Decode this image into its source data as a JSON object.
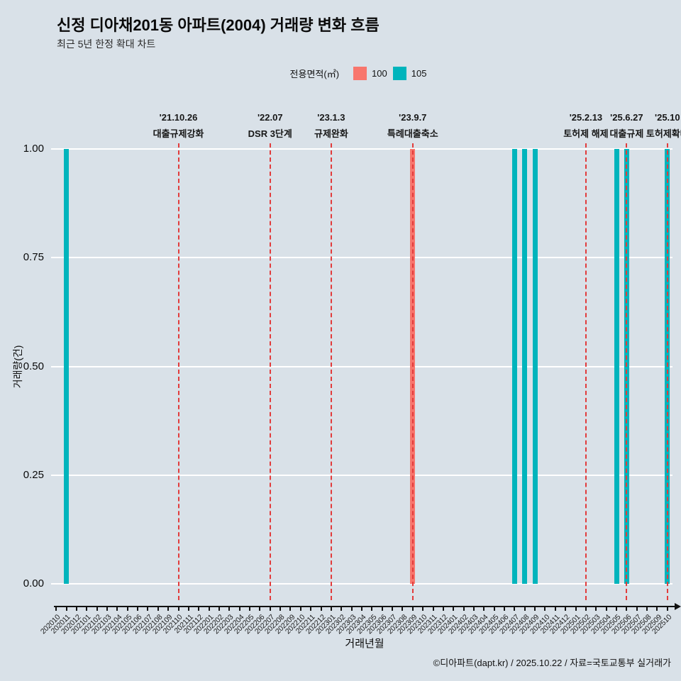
{
  "page": {
    "title": "신정 디아채201동 아파트(2004) 거래량 변화 흐름",
    "subtitle": "최근 5년 한정 확대 차트",
    "footer": "©디아파트(dapt.kr) / 2025.10.22 / 자료=국토교통부 실거래가"
  },
  "legend": {
    "title": "전용면적(㎡)",
    "items": [
      {
        "label": "100",
        "color": "#F8766D"
      },
      {
        "label": "105",
        "color": "#00B4BC"
      }
    ]
  },
  "colors": {
    "background": "#d9e1e8",
    "grid": "#ffffff",
    "axis": "#111111",
    "event_line": "#e23b3b"
  },
  "chart_data": {
    "type": "bar",
    "title": "신정 디아채201동 아파트(2004) 거래량 변화 흐름",
    "subtitle": "최근 5년 한정 확대 차트",
    "xlabel": "거래년월",
    "ylabel": "거래량(건)",
    "ylim": [
      0,
      1
    ],
    "yticks": [
      0,
      0.25,
      0.5,
      0.75,
      1
    ],
    "ytick_labels": [
      "0.00",
      "0.25",
      "0.50",
      "0.75",
      "1.00"
    ],
    "grid": true,
    "legend_position": "top",
    "legend_title": "전용면적(㎡)",
    "categories": [
      "202010",
      "202011",
      "202012",
      "202101",
      "202102",
      "202103",
      "202104",
      "202105",
      "202106",
      "202107",
      "202108",
      "202109",
      "202110",
      "202111",
      "202112",
      "202201",
      "202202",
      "202203",
      "202204",
      "202205",
      "202206",
      "202207",
      "202208",
      "202209",
      "202210",
      "202211",
      "202212",
      "202301",
      "202302",
      "202303",
      "202304",
      "202305",
      "202306",
      "202307",
      "202308",
      "202309",
      "202310",
      "202311",
      "202312",
      "202401",
      "202402",
      "202403",
      "202404",
      "202405",
      "202406",
      "202407",
      "202408",
      "202409",
      "202410",
      "202411",
      "202412",
      "202501",
      "202502",
      "202503",
      "202504",
      "202505",
      "202506",
      "202507",
      "202508",
      "202509",
      "202510"
    ],
    "series": [
      {
        "name": "100",
        "color": "#F8766D",
        "points": [
          {
            "x": "202309",
            "y": 1
          }
        ]
      },
      {
        "name": "105",
        "color": "#00B4BC",
        "points": [
          {
            "x": "202011",
            "y": 1
          },
          {
            "x": "202407",
            "y": 1
          },
          {
            "x": "202408",
            "y": 1
          },
          {
            "x": "202409",
            "y": 1
          },
          {
            "x": "202505",
            "y": 1
          },
          {
            "x": "202506",
            "y": 1
          },
          {
            "x": "202510",
            "y": 1
          }
        ]
      }
    ],
    "events": [
      {
        "date_label": "'21.10.26",
        "label": "대출규제강화",
        "month": "202110"
      },
      {
        "date_label": "'22.07",
        "label": "DSR 3단계",
        "month": "202207"
      },
      {
        "date_label": "'23.1.3",
        "label": "규제완화",
        "month": "202301"
      },
      {
        "date_label": "'23.9.7",
        "label": "특례대출축소",
        "month": "202309"
      },
      {
        "date_label": "'25.2.13",
        "label": "토허제 해제",
        "month": "202502"
      },
      {
        "date_label": "'25.6.27",
        "label": "대출규제",
        "month": "202506"
      },
      {
        "date_label": "'25.10",
        "label": "토허제확대",
        "month": "202510"
      }
    ]
  }
}
